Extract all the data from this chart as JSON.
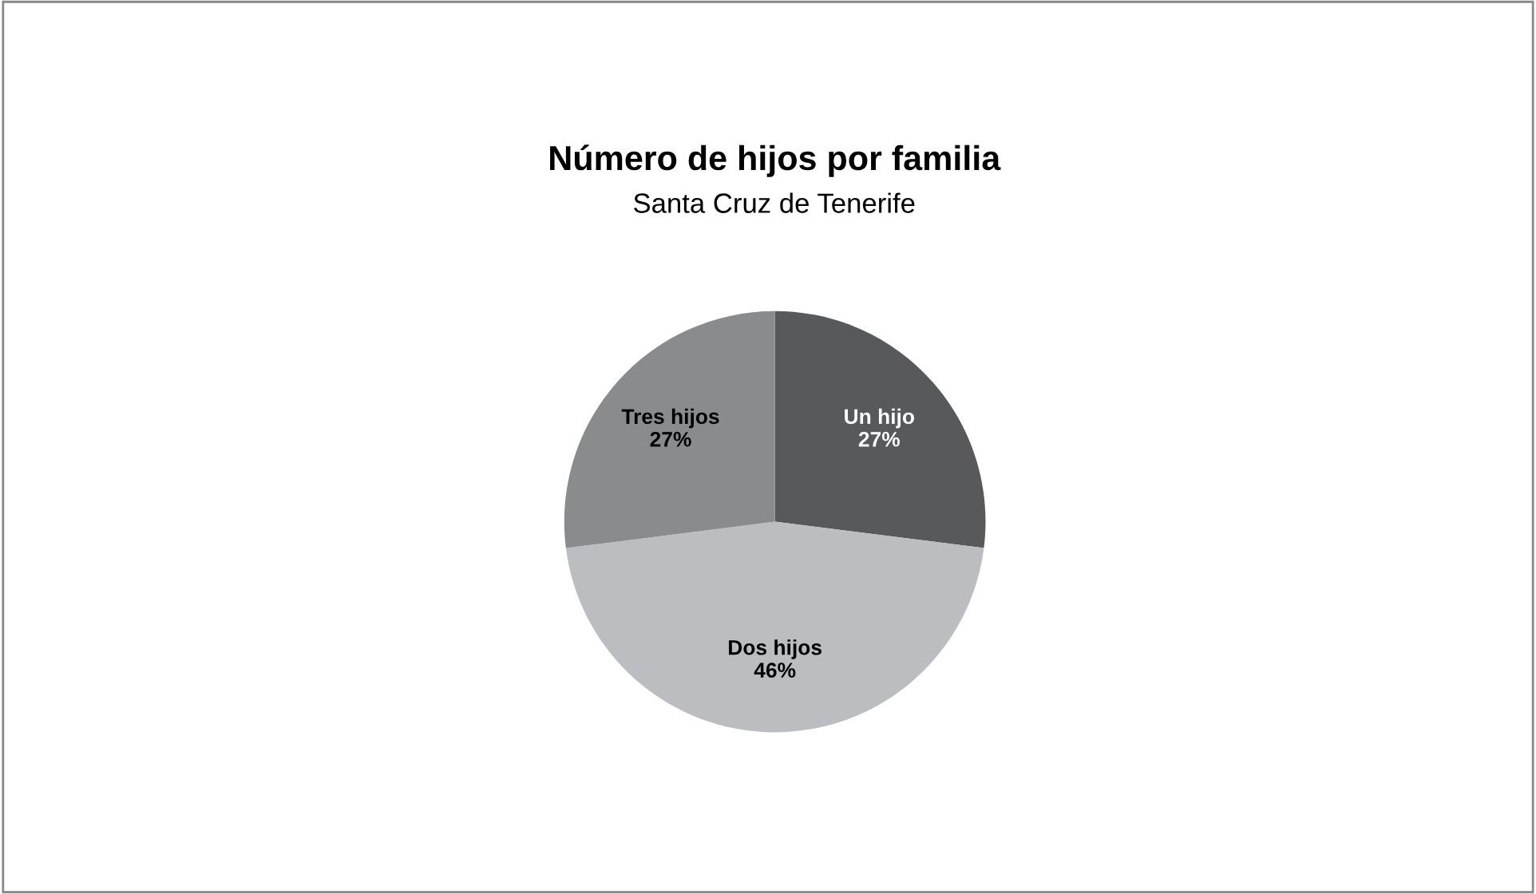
{
  "chart_data": {
    "type": "pie",
    "title": "Número de hijos por familia",
    "subtitle": "Santa Cruz de Tenerife",
    "categories": [
      "Un hijo",
      "Dos hijos",
      "Tres hijos"
    ],
    "values": [
      27,
      46,
      27
    ],
    "colors": [
      "#58595b",
      "#bcbdc0",
      "#8a8b8d"
    ],
    "value_labels": [
      "27%",
      "46%",
      "27%"
    ]
  }
}
